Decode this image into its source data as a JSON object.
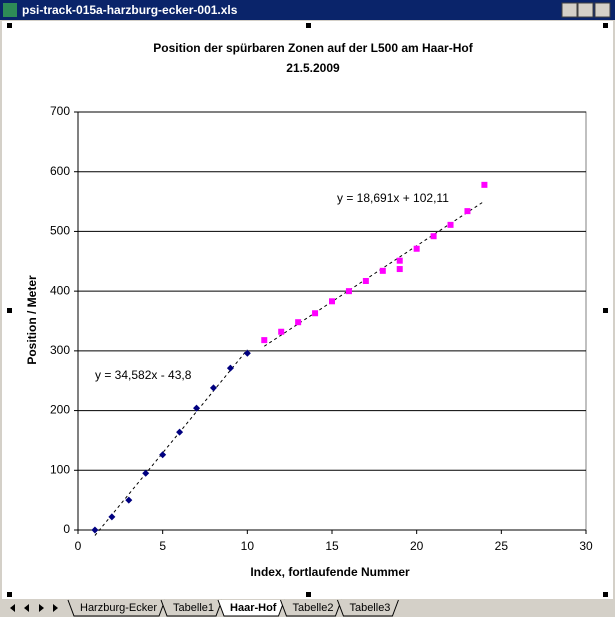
{
  "window": {
    "title": "psi-track-015a-harzburg-ecker-001.xls"
  },
  "tabs": [
    "Harzburg-Ecker",
    "Tabelle1",
    "Haar-Hof",
    "Tabelle2",
    "Tabelle3"
  ],
  "active_tab": 2,
  "chart_data": {
    "type": "scatter",
    "title": "Position der spürbaren Zonen auf der L500 am Haar-Hof",
    "subtitle": "21.5.2009",
    "x_label": "Index, fortlaufende Nummer",
    "y_label": "Position / Meter",
    "xlim": [
      0,
      30
    ],
    "xticks": [
      0,
      5,
      10,
      15,
      20,
      25,
      30
    ],
    "ylim": [
      0,
      700
    ],
    "yticks": [
      0,
      100,
      200,
      300,
      400,
      500,
      600,
      700
    ],
    "grid": true,
    "series": [
      {
        "marker": "diamond",
        "color": "#000080",
        "x": [
          1,
          2,
          3,
          4,
          5,
          6,
          7,
          8,
          9,
          10
        ],
        "values": [
          0,
          22,
          50,
          95,
          126,
          164,
          204,
          238,
          271,
          296
        ],
        "trendline": {
          "label": "y = 34,582x - 43,8",
          "slope": 34.582,
          "intercept": -43.8
        }
      },
      {
        "marker": "square",
        "color": "#ff00ff",
        "x": [
          11,
          12,
          13,
          14,
          15,
          16,
          17,
          18,
          19,
          19,
          20,
          21,
          22,
          23,
          24
        ],
        "values": [
          318,
          332,
          348,
          363,
          383,
          400,
          417,
          434,
          451,
          437,
          471,
          492,
          511,
          534,
          578
        ],
        "trendline": {
          "label": "y = 18,691x + 102,11",
          "slope": 18.691,
          "intercept": 102.11
        }
      }
    ]
  }
}
